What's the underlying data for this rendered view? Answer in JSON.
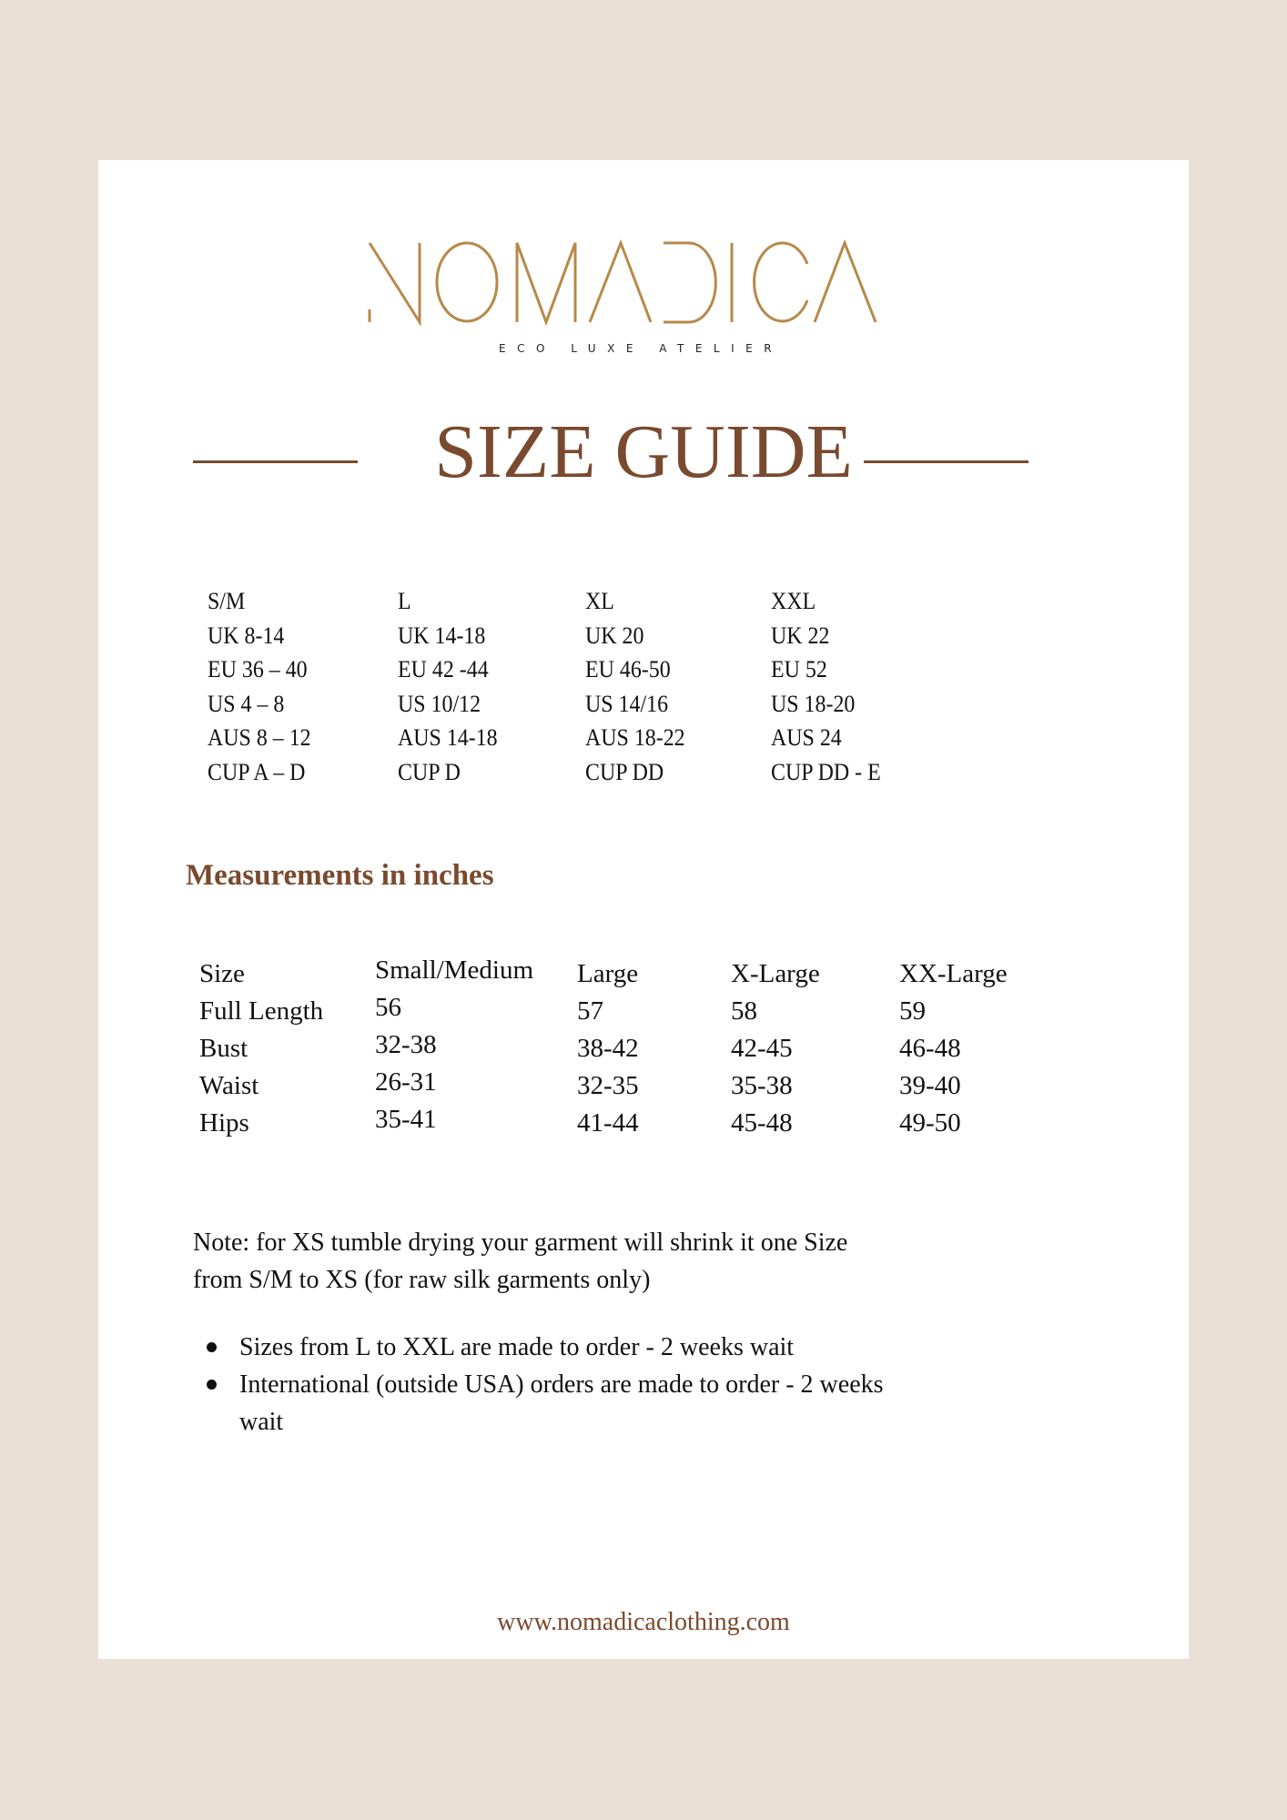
{
  "colors": {
    "background": "#e9e1d5",
    "accent_brown": "#7a4a2e",
    "logo_gold": "#b8894a"
  },
  "logo": {
    "name": "NOMADICA",
    "tagline": "ECO LUXE ATELIER"
  },
  "title": "SIZE GUIDE",
  "size_conversion": {
    "columns": [
      [
        "S/M",
        "UK 8-14",
        "EU 36 – 40",
        "US 4 – 8",
        "AUS 8 – 12",
        "CUP A – D"
      ],
      [
        "L",
        "UK 14-18",
        "EU 42 -44",
        "US 10/12",
        "AUS 14-18",
        "CUP D"
      ],
      [
        "XL",
        "UK 20",
        "EU 46-50",
        "US 14/16",
        "AUS 18-22",
        "CUP DD"
      ],
      [
        "XXL",
        "UK 22",
        "EU 52",
        "US 18-20",
        "AUS 24",
        "CUP DD - E"
      ]
    ]
  },
  "measurements": {
    "heading": "Measurements in inches",
    "headers": [
      "Size",
      "Small/Medium",
      "Large",
      "X-Large",
      "XX-Large"
    ],
    "rows": [
      [
        "Full Length",
        "56",
        "57",
        "58",
        "59"
      ],
      [
        "Bust",
        "32-38",
        "38-42",
        "42-45",
        "46-48"
      ],
      [
        "Waist",
        "26-31",
        "32-35",
        "35-38",
        "39-40"
      ],
      [
        "Hips",
        "35-41",
        "41-44",
        "45-48",
        "49-50"
      ]
    ]
  },
  "note": {
    "line1": "Note: for XS tumble drying your garment will shrink it one Size",
    "line2": "from S/M to XS (for raw silk garments only)"
  },
  "bullets": [
    {
      "line1": "Sizes from L to XXL are made to order - 2 weeks wait"
    },
    {
      "line1": "International (outside USA) orders are made to order - 2 weeks",
      "line2": "wait"
    }
  ],
  "website": "www.nomadicaclothing.com"
}
